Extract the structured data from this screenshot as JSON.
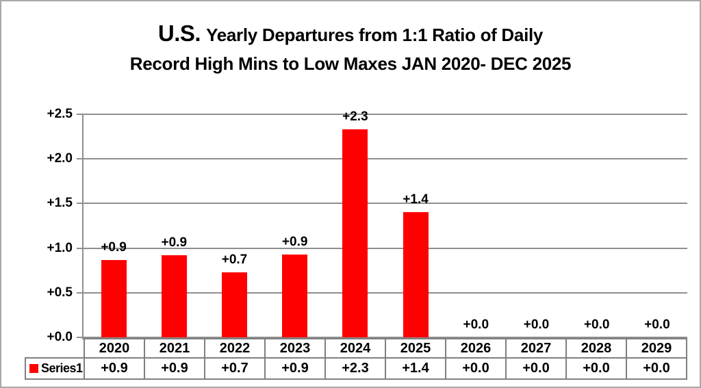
{
  "title": {
    "prefix": "U.S.",
    "line1_rest": "Yearly Departures from 1:1 Ratio of Daily",
    "line2": "Record High Mins to Low Maxes JAN 2020- DEC 2025"
  },
  "chart_data": {
    "type": "bar",
    "title": "U.S. Yearly Departures from 1:1 Ratio of Daily Record High Mins to Low Maxes JAN 2020- DEC 2025",
    "categories": [
      "2020",
      "2021",
      "2022",
      "2023",
      "2024",
      "2025",
      "2026",
      "2027",
      "2028",
      "2029"
    ],
    "series": [
      {
        "name": "Series1",
        "values": [
          0.87,
          0.92,
          0.73,
          0.93,
          2.33,
          1.4,
          0.0,
          0.0,
          0.0,
          0.0
        ],
        "labels": [
          "+0.9",
          "+0.9",
          "+0.7",
          "+0.9",
          "+2.3",
          "+1.4",
          "+0.0",
          "+0.0",
          "+0.0",
          "+0.0"
        ]
      }
    ],
    "xlabel": "",
    "ylabel": "",
    "ylim": [
      0,
      2.5
    ],
    "ytick_step": 0.5,
    "ytick_labels": [
      "+0.0",
      "+0.5",
      "+1.0",
      "+1.5",
      "+2.0",
      "+2.5"
    ],
    "grid": true,
    "legend_position": "table-left",
    "bar_color": "#fe0000"
  },
  "colors": {
    "bar": "#fe0000",
    "gridline": "#8e8e8e",
    "table_border": "#7f7f7f",
    "canvas_border": "#a8a8a8",
    "text": "#000000",
    "background": "#ffffff"
  }
}
